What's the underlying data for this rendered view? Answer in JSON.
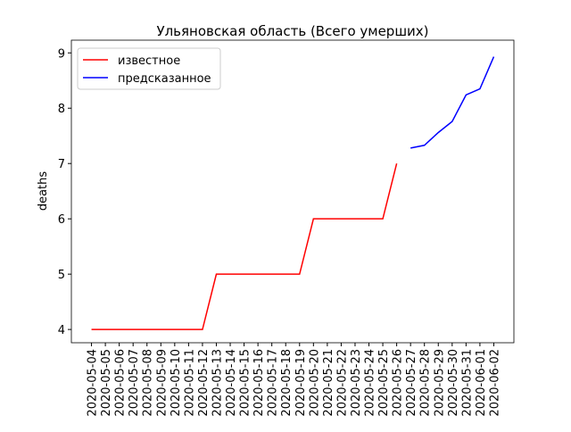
{
  "chart_data": {
    "type": "line",
    "title": "Ульяновская область (Всего умерших)",
    "y_label": "deaths",
    "categories": [
      "2020-05-04",
      "2020-05-05",
      "2020-05-06",
      "2020-05-07",
      "2020-05-08",
      "2020-05-09",
      "2020-05-10",
      "2020-05-11",
      "2020-05-12",
      "2020-05-13",
      "2020-05-14",
      "2020-05-15",
      "2020-05-16",
      "2020-05-17",
      "2020-05-18",
      "2020-05-19",
      "2020-05-20",
      "2020-05-21",
      "2020-05-22",
      "2020-05-23",
      "2020-05-24",
      "2020-05-25",
      "2020-05-26",
      "2020-05-27",
      "2020-05-28",
      "2020-05-29",
      "2020-05-30",
      "2020-05-31",
      "2020-06-01",
      "2020-06-02"
    ],
    "series": [
      {
        "name": "известное",
        "color": "#ff0000",
        "values": [
          4,
          4,
          4,
          4,
          4,
          4,
          4,
          4,
          4,
          5,
          5,
          5,
          5,
          5,
          5,
          5,
          6,
          6,
          6,
          6,
          6,
          6,
          7,
          null,
          null,
          null,
          null,
          null,
          null,
          null
        ]
      },
      {
        "name": "предсказанное",
        "color": "#0000ff",
        "values": [
          null,
          null,
          null,
          null,
          null,
          null,
          null,
          null,
          null,
          null,
          null,
          null,
          null,
          null,
          null,
          null,
          null,
          null,
          null,
          null,
          null,
          null,
          null,
          7.28,
          7.33,
          7.56,
          7.76,
          8.24,
          8.35,
          8.93
        ]
      }
    ],
    "ylim": [
      3.76,
      9.23
    ],
    "yticks": [
      4,
      5,
      6,
      7,
      8,
      9
    ],
    "legend": "upper left"
  }
}
